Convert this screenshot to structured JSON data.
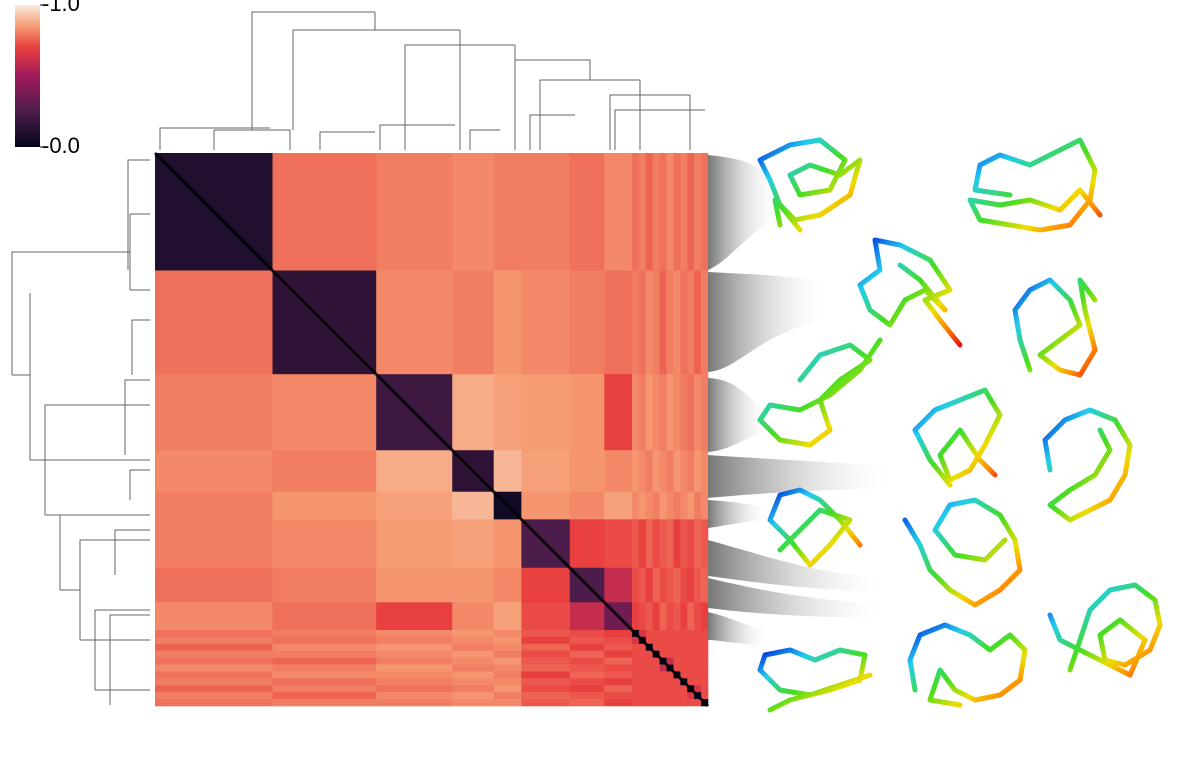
{
  "chart_data": {
    "type": "heatmap",
    "zlim": [
      -1,
      0
    ],
    "colorbar_ticks": [
      {
        "value": -1,
        "label": "-1.0"
      },
      {
        "value": 0,
        "label": "-0.0"
      }
    ],
    "sizes": [
      17,
      15,
      11,
      6,
      4,
      7,
      5,
      4,
      1,
      1,
      1,
      1,
      1,
      1,
      1,
      1,
      1,
      1,
      1
    ],
    "matrix": [
      [
        -0.1,
        -0.78,
        -0.8,
        -0.82,
        -0.8,
        -0.8,
        -0.78,
        -0.82,
        -0.78,
        -0.8,
        -0.76,
        -0.8,
        -0.78,
        -0.82,
        -0.78,
        -0.8,
        -0.76,
        -0.8,
        -0.78
      ],
      [
        -0.78,
        -0.15,
        -0.82,
        -0.8,
        -0.84,
        -0.82,
        -0.8,
        -0.78,
        -0.8,
        -0.78,
        -0.82,
        -0.8,
        -0.76,
        -0.8,
        -0.82,
        -0.78,
        -0.8,
        -0.76,
        -0.8
      ],
      [
        -0.8,
        -0.82,
        -0.2,
        -0.88,
        -0.86,
        -0.85,
        -0.84,
        -0.7,
        -0.82,
        -0.8,
        -0.84,
        -0.82,
        -0.8,
        -0.84,
        -0.82,
        -0.8,
        -0.78,
        -0.82,
        -0.8
      ],
      [
        -0.82,
        -0.8,
        -0.88,
        -0.15,
        -0.9,
        -0.86,
        -0.84,
        -0.82,
        -0.84,
        -0.82,
        -0.8,
        -0.84,
        -0.82,
        -0.8,
        -0.84,
        -0.82,
        -0.8,
        -0.84,
        -0.82
      ],
      [
        -0.8,
        -0.84,
        -0.86,
        -0.9,
        -0.05,
        -0.84,
        -0.82,
        -0.86,
        -0.82,
        -0.84,
        -0.82,
        -0.8,
        -0.84,
        -0.82,
        -0.8,
        -0.82,
        -0.84,
        -0.8,
        -0.82
      ],
      [
        -0.8,
        -0.82,
        -0.85,
        -0.86,
        -0.84,
        -0.25,
        -0.7,
        -0.72,
        -0.74,
        -0.7,
        -0.76,
        -0.72,
        -0.74,
        -0.76,
        -0.7,
        -0.74,
        -0.72,
        -0.76,
        -0.74
      ],
      [
        -0.78,
        -0.8,
        -0.84,
        -0.84,
        -0.82,
        -0.7,
        -0.25,
        -0.6,
        -0.72,
        -0.74,
        -0.7,
        -0.76,
        -0.72,
        -0.74,
        -0.76,
        -0.72,
        -0.7,
        -0.74,
        -0.76
      ],
      [
        -0.82,
        -0.78,
        -0.7,
        -0.82,
        -0.86,
        -0.72,
        -0.6,
        -0.35,
        -0.7,
        -0.72,
        -0.74,
        -0.7,
        -0.76,
        -0.72,
        -0.74,
        -0.7,
        -0.76,
        -0.72,
        -0.7
      ],
      [
        -0.78,
        -0.8,
        -0.82,
        -0.84,
        -0.82,
        -0.74,
        -0.72,
        -0.7,
        0,
        -0.65,
        -0.72,
        -0.72,
        -0.72,
        -0.72,
        -0.72,
        -0.72,
        -0.72,
        -0.72,
        -0.72
      ],
      [
        -0.8,
        -0.78,
        -0.8,
        -0.82,
        -0.84,
        -0.7,
        -0.74,
        -0.72,
        -0.65,
        0,
        -0.72,
        -0.72,
        -0.72,
        -0.72,
        -0.72,
        -0.72,
        -0.72,
        -0.72,
        -0.72
      ],
      [
        -0.76,
        -0.82,
        -0.84,
        -0.8,
        -0.82,
        -0.76,
        -0.7,
        -0.74,
        -0.72,
        -0.72,
        0,
        -0.72,
        -0.72,
        -0.72,
        -0.72,
        -0.72,
        -0.72,
        -0.72,
        -0.72
      ],
      [
        -0.8,
        -0.8,
        -0.82,
        -0.84,
        -0.8,
        -0.72,
        -0.76,
        -0.7,
        -0.72,
        -0.72,
        -0.72,
        0,
        -0.72,
        -0.72,
        -0.72,
        -0.72,
        -0.72,
        -0.72,
        -0.72
      ],
      [
        -0.78,
        -0.76,
        -0.8,
        -0.82,
        -0.84,
        -0.74,
        -0.72,
        -0.76,
        -0.72,
        -0.72,
        -0.72,
        -0.72,
        0,
        -0.6,
        -0.72,
        -0.72,
        -0.72,
        -0.72,
        -0.72
      ],
      [
        -0.82,
        -0.8,
        -0.84,
        -0.8,
        -0.82,
        -0.76,
        -0.74,
        -0.72,
        -0.72,
        -0.72,
        -0.72,
        -0.72,
        -0.6,
        0,
        -0.72,
        -0.72,
        -0.72,
        -0.72,
        -0.72
      ],
      [
        -0.78,
        -0.82,
        -0.82,
        -0.84,
        -0.8,
        -0.7,
        -0.76,
        -0.74,
        -0.72,
        -0.72,
        -0.72,
        -0.72,
        -0.72,
        -0.72,
        0,
        -0.72,
        -0.72,
        -0.72,
        -0.72
      ],
      [
        -0.8,
        -0.78,
        -0.8,
        -0.82,
        -0.82,
        -0.74,
        -0.72,
        -0.7,
        -0.72,
        -0.72,
        -0.72,
        -0.72,
        -0.72,
        -0.72,
        -0.72,
        0,
        -0.72,
        -0.72,
        -0.72
      ],
      [
        -0.76,
        -0.8,
        -0.78,
        -0.8,
        -0.84,
        -0.72,
        -0.7,
        -0.76,
        -0.72,
        -0.72,
        -0.72,
        -0.72,
        -0.72,
        -0.72,
        -0.72,
        -0.72,
        0,
        -0.65,
        -0.72
      ],
      [
        -0.8,
        -0.76,
        -0.82,
        -0.84,
        -0.8,
        -0.76,
        -0.74,
        -0.72,
        -0.72,
        -0.72,
        -0.72,
        -0.72,
        -0.72,
        -0.72,
        -0.72,
        -0.72,
        -0.65,
        0,
        -0.72
      ],
      [
        -0.78,
        -0.8,
        -0.8,
        -0.82,
        -0.82,
        -0.74,
        -0.76,
        -0.7,
        -0.72,
        -0.72,
        -0.72,
        -0.72,
        -0.72,
        -0.72,
        -0.72,
        -0.72,
        -0.72,
        -0.72,
        0
      ]
    ]
  }
}
